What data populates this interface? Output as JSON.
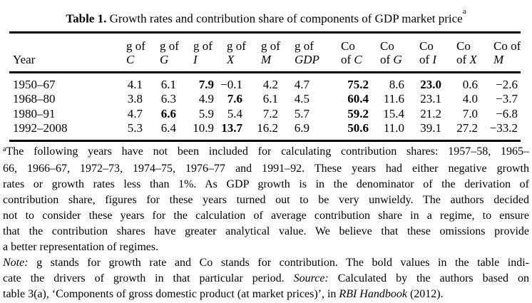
{
  "page": {
    "background_color": "#ffffff",
    "text_color": "#000000",
    "rule_color": "#000000"
  },
  "title": {
    "label": "Table 1.",
    "text": "Growth rates and contribution share of components of GDP market price",
    "superscript": "a"
  },
  "table": {
    "header": [
      {
        "id": "year",
        "line1": "",
        "line2_plain": "Year",
        "line2_italic": ""
      },
      {
        "id": "g-of-c",
        "line1": "g of",
        "line2_plain": "",
        "line2_italic": "C"
      },
      {
        "id": "g-of-g",
        "line1": "g of",
        "line2_plain": "",
        "line2_italic": "G"
      },
      {
        "id": "g-of-i",
        "line1": "g of",
        "line2_plain": "",
        "line2_italic": "I"
      },
      {
        "id": "g-of-x",
        "line1": "g of",
        "line2_plain": "",
        "line2_italic": "X"
      },
      {
        "id": "g-of-m",
        "line1": "g of",
        "line2_plain": "",
        "line2_italic": "M"
      },
      {
        "id": "g-of-gdp",
        "line1": "g of",
        "line2_plain": "",
        "line2_italic": "GDP"
      },
      {
        "id": "co-of-c",
        "line1": "Co",
        "line2_plain": "of ",
        "line2_italic": "C"
      },
      {
        "id": "co-of-g",
        "line1": "Co",
        "line2_plain": "of ",
        "line2_italic": "G"
      },
      {
        "id": "co-of-i",
        "line1": "Co",
        "line2_plain": "of ",
        "line2_italic": "I"
      },
      {
        "id": "co-of-x",
        "line1": "Co",
        "line2_plain": "of ",
        "line2_italic": "X"
      },
      {
        "id": "co-of-m",
        "line1": "Co of",
        "line2_plain": "",
        "line2_italic": "M"
      }
    ],
    "rows": [
      {
        "year": "1950–67",
        "values": [
          "4.1",
          "6.1",
          "7.9",
          "−0.1",
          "4.2",
          "4.7",
          "75.2",
          "8.6",
          "23.0",
          "0.6",
          "−2.6"
        ],
        "bold": [
          2,
          6,
          8
        ]
      },
      {
        "year": "1968–80",
        "values": [
          "3.8",
          "6.3",
          "4.9",
          "7.6",
          "6.1",
          "4.5",
          "60.4",
          "11.6",
          "23.1",
          "4.0",
          "−3.7"
        ],
        "bold": [
          3,
          6
        ]
      },
      {
        "year": "1980–91",
        "values": [
          "4.7",
          "6.6",
          "5.9",
          "5.4",
          "7.2",
          "5.7",
          "59.2",
          "15.4",
          "21.2",
          "7.0",
          "−6.8"
        ],
        "bold": [
          1,
          6
        ]
      },
      {
        "year": "1992–2008",
        "values": [
          "5.3",
          "6.4",
          "10.9",
          "13.7",
          "16.2",
          "6.9",
          "50.6",
          "11.0",
          "39.1",
          "27.2",
          "−33.2"
        ],
        "bold": [
          3,
          6
        ]
      }
    ]
  },
  "footnote": {
    "lines": [
      {
        "justify": true,
        "segments": [
          {
            "style": "sup",
            "text": "a"
          },
          {
            "style": "normal",
            "text": "The following years have not been included for calculating contribution shares: 1957–58, 1965–"
          }
        ]
      },
      {
        "justify": true,
        "segments": [
          {
            "style": "normal",
            "text": "66, 1966–67, 1972–73, 1974–75, 1976–77 and 1991–92. These years had either negative growth"
          }
        ]
      },
      {
        "justify": true,
        "segments": [
          {
            "style": "normal",
            "text": "rates or growth rates less than 1%. As GDP growth is in the denominator of the derivation of"
          }
        ]
      },
      {
        "justify": true,
        "segments": [
          {
            "style": "normal",
            "text": "contribution share, figures for these years turned out to be very unwieldy. The authors decided"
          }
        ]
      },
      {
        "justify": true,
        "segments": [
          {
            "style": "normal",
            "text": "not to consider these years for the calculation of average contribution share in a regime, to ensure"
          }
        ]
      },
      {
        "justify": true,
        "segments": [
          {
            "style": "normal",
            "text": "that the contribution shares have greater analytical value. We believe that these omissions provide"
          }
        ]
      },
      {
        "justify": false,
        "segments": [
          {
            "style": "normal",
            "text": "a better representation of regimes."
          }
        ]
      },
      {
        "justify": true,
        "segments": [
          {
            "style": "italic",
            "text": "Note:"
          },
          {
            "style": "normal",
            "text": " g stands for growth rate and Co stands for contribution. The bold values in the table indi-"
          }
        ]
      },
      {
        "justify": true,
        "segments": [
          {
            "style": "normal",
            "text": "cate the drivers of growth in that particular period. "
          },
          {
            "style": "italic",
            "text": "Source:"
          },
          {
            "style": "normal",
            "text": " Calculated by the authors based on"
          }
        ]
      },
      {
        "justify": false,
        "segments": [
          {
            "style": "normal",
            "text": "table 3(a), ‘Components of gross domestic product (at market prices)’, in "
          },
          {
            "style": "italic",
            "text": "RBI Handbook"
          },
          {
            "style": "normal",
            "text": " (2012)."
          }
        ]
      }
    ]
  }
}
